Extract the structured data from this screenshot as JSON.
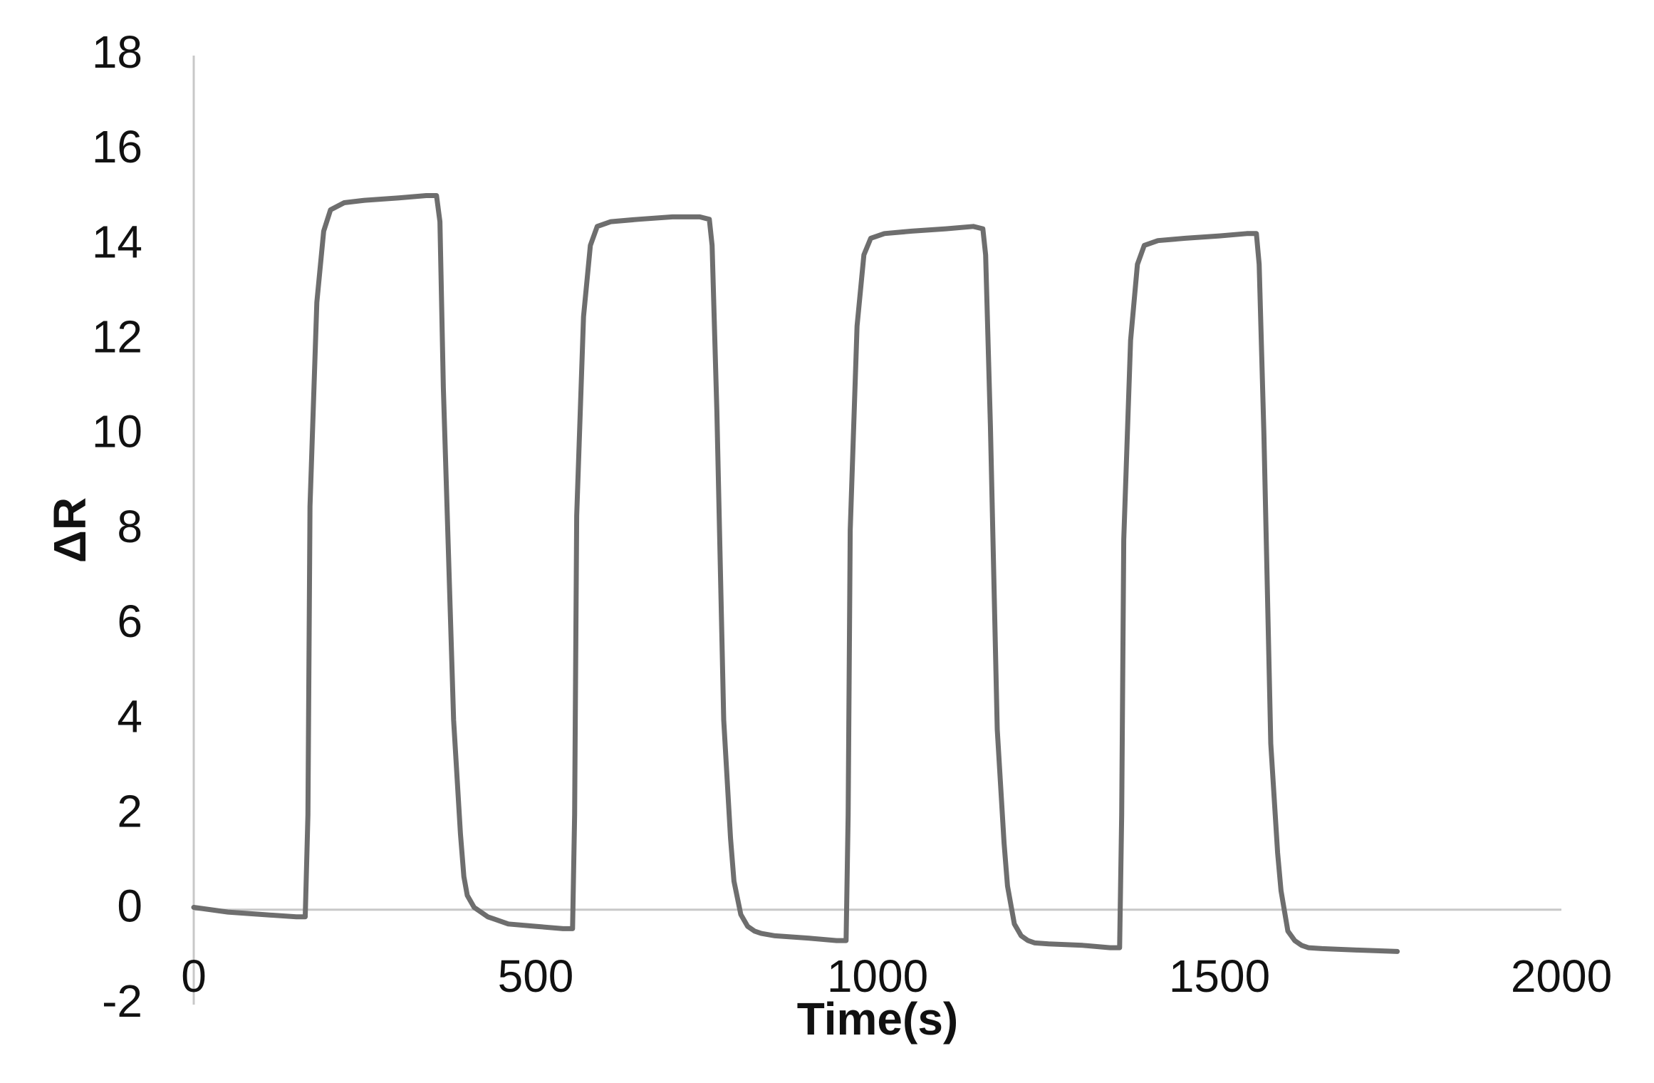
{
  "chart_data": {
    "type": "line",
    "title": "",
    "xlabel": "Time(s)",
    "ylabel": "ΔR",
    "xlim": [
      0,
      2000
    ],
    "ylim": [
      -2,
      18
    ],
    "x_ticks": [
      0,
      500,
      1000,
      1500,
      2000
    ],
    "y_ticks": [
      -2,
      0,
      2,
      4,
      6,
      8,
      10,
      12,
      14,
      16,
      18
    ],
    "x_tick_labels": [
      "0",
      "500",
      "1000",
      "1500",
      "2000"
    ],
    "y_tick_labels": [
      "-2",
      "0",
      "2",
      "4",
      "6",
      "8",
      "10",
      "12",
      "14",
      "16",
      "18"
    ],
    "grid": false,
    "legend": "none",
    "series": [
      {
        "color": "#6e6e6e",
        "x": [
          0,
          50,
          100,
          150,
          163,
          167,
          170,
          180,
          190,
          200,
          220,
          250,
          300,
          340,
          355,
          360,
          365,
          380,
          390,
          395,
          400,
          410,
          420,
          430,
          440,
          460,
          500,
          540,
          554,
          557,
          560,
          570,
          580,
          590,
          610,
          650,
          700,
          740,
          754,
          758,
          765,
          775,
          785,
          790,
          800,
          810,
          820,
          830,
          850,
          900,
          940,
          954,
          957,
          960,
          970,
          980,
          990,
          1010,
          1050,
          1100,
          1140,
          1154,
          1158,
          1165,
          1175,
          1185,
          1190,
          1200,
          1210,
          1220,
          1230,
          1250,
          1300,
          1340,
          1354,
          1357,
          1360,
          1370,
          1380,
          1390,
          1410,
          1450,
          1500,
          1540,
          1554,
          1558,
          1565,
          1575,
          1585,
          1590,
          1600,
          1610,
          1620,
          1630,
          1650,
          1700,
          1760
        ],
        "y": [
          0.05,
          -0.05,
          -0.1,
          -0.15,
          -0.15,
          2.0,
          8.5,
          12.8,
          14.3,
          14.75,
          14.9,
          14.95,
          15.0,
          15.05,
          15.05,
          14.5,
          11.0,
          4.0,
          1.6,
          0.7,
          0.3,
          0.05,
          -0.05,
          -0.15,
          -0.2,
          -0.3,
          -0.35,
          -0.4,
          -0.4,
          2.0,
          8.3,
          12.5,
          14.0,
          14.4,
          14.5,
          14.55,
          14.6,
          14.6,
          14.55,
          14.0,
          10.5,
          4.0,
          1.5,
          0.6,
          -0.1,
          -0.35,
          -0.45,
          -0.5,
          -0.55,
          -0.6,
          -0.65,
          -0.65,
          2.0,
          8.0,
          12.3,
          13.8,
          14.15,
          14.25,
          14.3,
          14.35,
          14.4,
          14.35,
          13.8,
          10.2,
          3.8,
          1.4,
          0.5,
          -0.3,
          -0.55,
          -0.65,
          -0.7,
          -0.72,
          -0.75,
          -0.8,
          -0.8,
          2.0,
          7.8,
          12.0,
          13.6,
          14.0,
          14.1,
          14.15,
          14.2,
          14.25,
          14.25,
          13.6,
          10.0,
          3.5,
          1.2,
          0.4,
          -0.45,
          -0.65,
          -0.75,
          -0.8,
          -0.82,
          -0.85,
          -0.88
        ]
      }
    ]
  }
}
